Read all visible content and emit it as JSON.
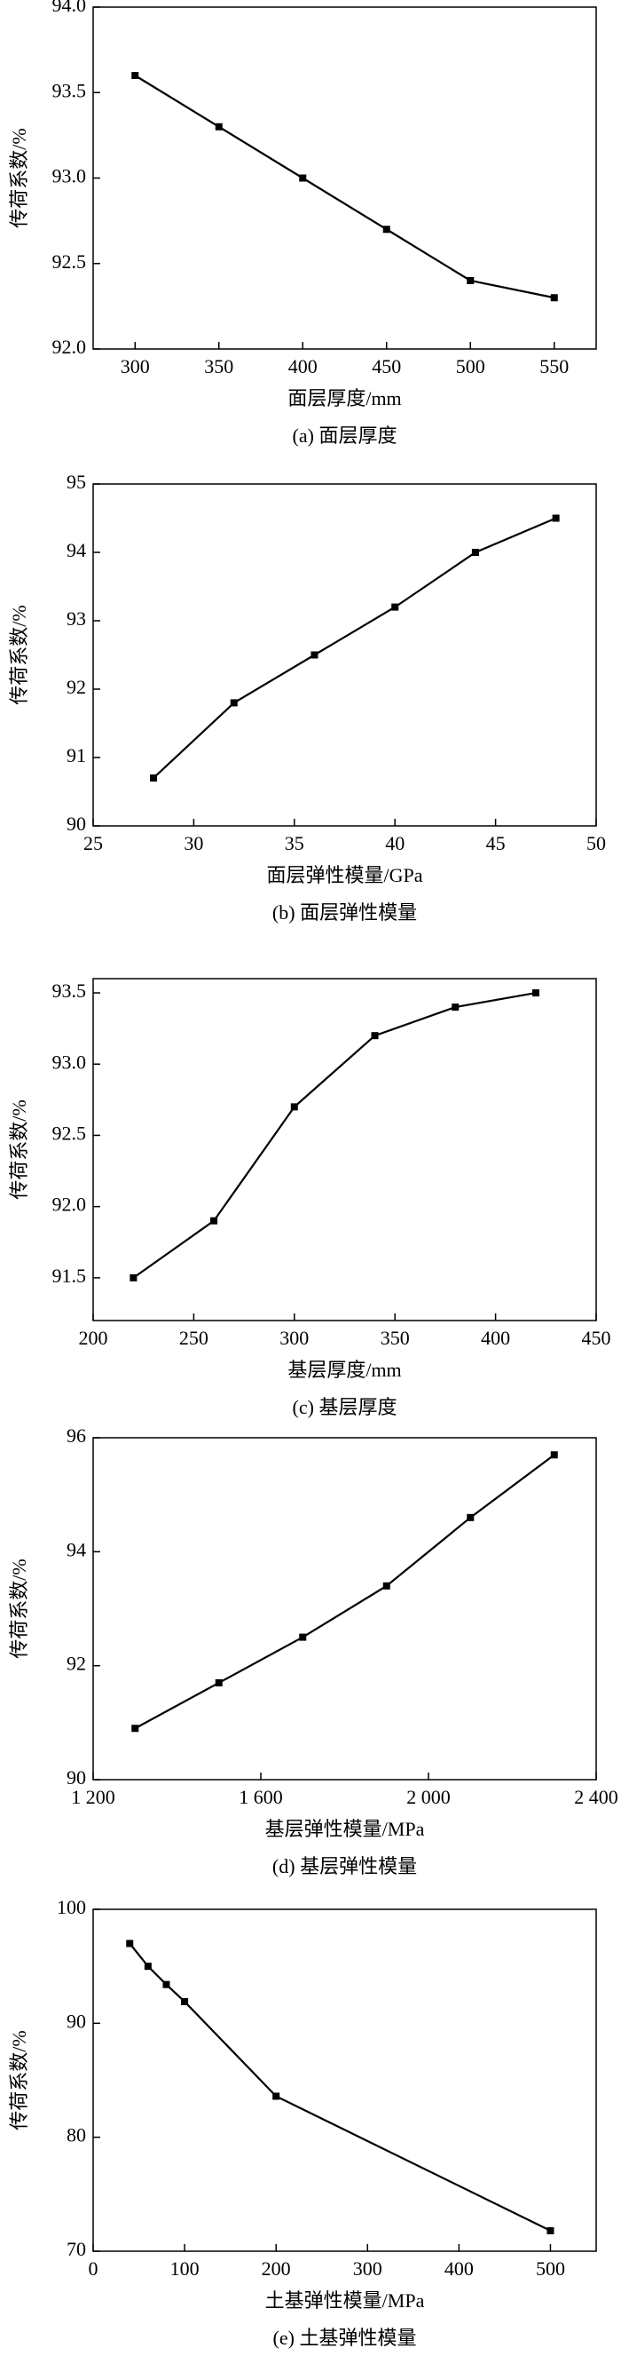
{
  "chart_data": [
    {
      "type": "line",
      "xlabel": "面层厚度/mm",
      "ylabel": "传荷系数/%",
      "caption": "(a) 面层厚度",
      "x": [
        300,
        350,
        400,
        450,
        500,
        550
      ],
      "series": [
        {
          "name": "传荷系数",
          "color": "#000000",
          "values": [
            93.6,
            93.3,
            93.0,
            92.7,
            92.4,
            92.3
          ]
        }
      ],
      "xlim": [
        275,
        575
      ],
      "xticks": [
        300,
        350,
        400,
        450,
        500,
        550
      ],
      "ylim": [
        92.0,
        94.0
      ],
      "yticks": [
        {
          "value": 92.0,
          "label": "92.0"
        },
        92.5,
        {
          "value": 93.0,
          "label": "93.0"
        },
        93.5,
        {
          "value": 94.0,
          "label": "94.0"
        }
      ]
    },
    {
      "type": "line",
      "xlabel": "面层弹性模量/GPa",
      "ylabel": "传荷系数/%",
      "caption": "(b) 面层弹性模量",
      "x": [
        28,
        32,
        36,
        40,
        44,
        48
      ],
      "series": [
        {
          "name": "传荷系数",
          "color": "#000000",
          "values": [
            90.7,
            91.8,
            92.5,
            93.2,
            94.0,
            94.5
          ]
        }
      ],
      "xlim": [
        25,
        50
      ],
      "xticks": [
        25,
        30,
        35,
        40,
        45,
        50
      ],
      "ylim": [
        90,
        95
      ],
      "yticks": [
        90,
        91,
        92,
        93,
        94,
        95
      ]
    },
    {
      "type": "line",
      "xlabel": "基层厚度/mm",
      "ylabel": "传荷系数/%",
      "caption": "(c) 基层厚度",
      "x": [
        220,
        260,
        300,
        340,
        380,
        420
      ],
      "series": [
        {
          "name": "传荷系数",
          "color": "#000000",
          "values": [
            91.5,
            91.9,
            92.7,
            93.2,
            93.4,
            93.5
          ]
        }
      ],
      "xlim": [
        200,
        450
      ],
      "xticks": [
        200,
        250,
        300,
        350,
        400,
        450
      ],
      "ylim": [
        91.2,
        93.6
      ],
      "yticks": [
        91.5,
        {
          "value": 92.0,
          "label": "92.0"
        },
        92.5,
        {
          "value": 93.0,
          "label": "93.0"
        },
        93.5
      ]
    },
    {
      "type": "line",
      "xlabel": "基层弹性模量/MPa",
      "ylabel": "传荷系数/%",
      "caption": "(d) 基层弹性模量",
      "x": [
        1300,
        1500,
        1700,
        1900,
        2100,
        2300
      ],
      "series": [
        {
          "name": "传荷系数",
          "color": "#000000",
          "values": [
            90.9,
            91.7,
            92.5,
            93.4,
            94.6,
            95.7
          ]
        }
      ],
      "xlim": [
        1200,
        2400
      ],
      "xticks": [
        {
          "value": 1200,
          "label": "1 200"
        },
        {
          "value": 1600,
          "label": "1 600"
        },
        {
          "value": 2000,
          "label": "2 000"
        },
        {
          "value": 2400,
          "label": "2 400"
        }
      ],
      "ylim": [
        90,
        96
      ],
      "yticks": [
        90,
        92,
        94,
        96
      ]
    },
    {
      "type": "line",
      "xlabel": "土基弹性模量/MPa",
      "ylabel": "传荷系数/%",
      "caption": "(e) 土基弹性模量",
      "x": [
        40,
        60,
        80,
        100,
        200,
        500
      ],
      "series": [
        {
          "name": "传荷系数",
          "color": "#000000",
          "values": [
            97.0,
            95.0,
            93.4,
            91.9,
            83.6,
            71.8
          ]
        }
      ],
      "xlim": [
        0,
        550
      ],
      "xticks": [
        0,
        100,
        200,
        300,
        400,
        500
      ],
      "ylim": [
        70,
        100
      ],
      "yticks": [
        70,
        80,
        90,
        100
      ]
    }
  ]
}
